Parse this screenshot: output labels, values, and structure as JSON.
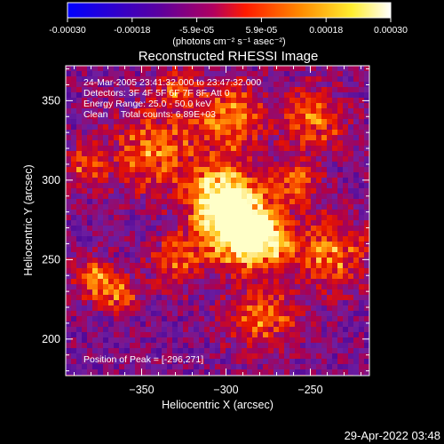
{
  "colorbar": {
    "tick_labels": [
      "-0.00030",
      "-0.00018",
      "-5.9e-05",
      "5.9e-05",
      "0.00018",
      "0.00030"
    ],
    "units_label": "(photons cm⁻² s⁻¹ asec⁻²)",
    "colors": [
      "#0000ff",
      "#6a0080",
      "#c0004a",
      "#ff2000",
      "#ff8c00",
      "#ffff60",
      "#ffffff"
    ]
  },
  "plot": {
    "title": "Reconstructed RHESSI Image",
    "annotations": [
      "24-Mar-2005 23:41:32.000 to 23:47:32.000",
      "Detectors: 3F 4F 5F 6F 7F 8F, Att 0",
      "Energy Range: 25.0 - 50.0 keV",
      "Clean     Total counts: 6.89E+03"
    ],
    "peak_text": "Position of Peak = [-296,271]",
    "peak": {
      "x": -296,
      "y": 271
    },
    "xlabel": "Heliocentric X (arcsec)",
    "ylabel": "Heliocentric Y (arcsec)",
    "xlim": [
      -395,
      -215
    ],
    "ylim": [
      177,
      372
    ],
    "xticks": [
      -350,
      -300,
      -250
    ],
    "yticks": [
      200,
      250,
      300,
      350
    ]
  },
  "footer": {
    "timestamp": "29-Apr-2022 03:48"
  }
}
